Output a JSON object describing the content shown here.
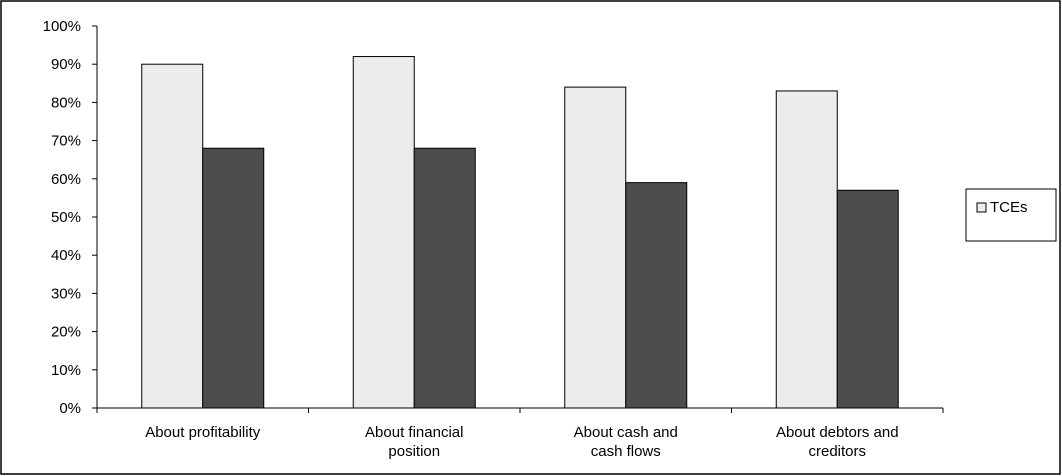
{
  "chart_data": {
    "type": "bar",
    "categories": [
      [
        "About  profitability"
      ],
      [
        "About financial",
        "position"
      ],
      [
        "About cash and",
        "cash flows"
      ],
      [
        "About debtors and",
        "creditors"
      ]
    ],
    "series": [
      {
        "name": "TCEs",
        "values": [
          90,
          92,
          84,
          83
        ],
        "color": "#ececec"
      },
      {
        "values": [
          68,
          68,
          59,
          57
        ],
        "color": "#4d4d4d"
      }
    ],
    "ylim": [
      0,
      100
    ],
    "yticks": [
      "0%",
      "10%",
      "20%",
      "30%",
      "40%",
      "50%",
      "60%",
      "70%",
      "80%",
      "90%",
      "100%"
    ],
    "grid": false,
    "legend": {
      "position": "right",
      "entries": [
        "TCEs"
      ]
    }
  }
}
